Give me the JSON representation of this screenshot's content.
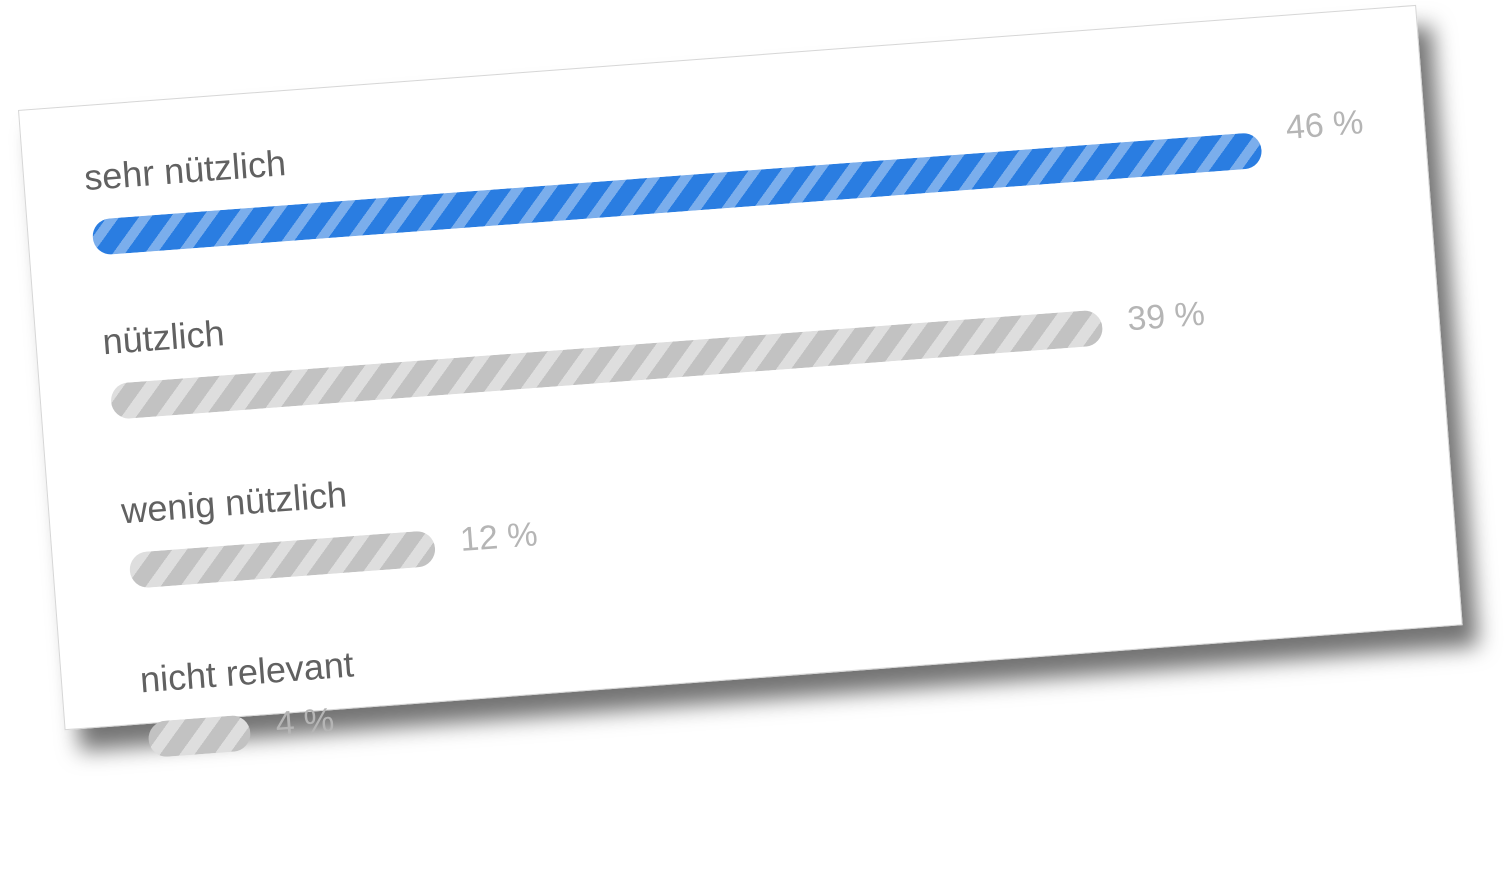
{
  "colors": {
    "accent": "#2a7de1",
    "muted": "#c2c2c2",
    "label_text": "#616161",
    "percent_text": "#b5b5b5"
  },
  "chart_data": {
    "type": "bar",
    "orientation": "horizontal",
    "categories": [
      "sehr nützlich",
      "nützlich",
      "wenig nützlich",
      "nicht relevant"
    ],
    "values": [
      46,
      39,
      12,
      4
    ],
    "value_labels": [
      "46 %",
      "39 %",
      "12 %",
      "4 %"
    ],
    "unit": "%",
    "highlight_index": 0,
    "xlim": [
      0,
      46
    ],
    "grid": false,
    "legend": "none"
  }
}
